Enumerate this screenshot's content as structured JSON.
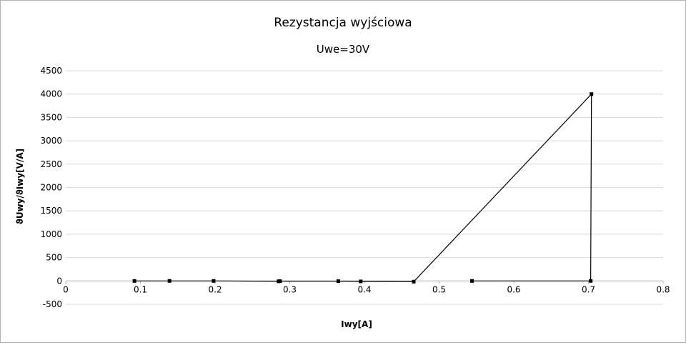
{
  "chart_data": {
    "type": "scatter",
    "title": "Rezystancja wyjściowa",
    "subtitle": "Uwe=30V",
    "xlabel": "Iwy[A]",
    "ylabel": "ϑUwy/ϑIwy[V/A]",
    "xlim": [
      0,
      0.8
    ],
    "ylim": [
      -500,
      4500
    ],
    "x_ticks": [
      "0",
      "0.1",
      "0.2",
      "0.3",
      "0.4",
      "0.5",
      "0.6",
      "0.7",
      "0.8"
    ],
    "y_ticks": [
      "-500",
      "0",
      "500",
      "1000",
      "1500",
      "2000",
      "2500",
      "3000",
      "3500",
      "4000",
      "4500"
    ],
    "grid": "horizontal",
    "legend": "none",
    "line_color": "#000000",
    "grid_color": "#d9d9d9",
    "series": [
      {
        "points": [
          {
            "x": 0.092,
            "y": 0
          },
          {
            "x": 0.139,
            "y": 0
          },
          {
            "x": 0.198,
            "y": 0
          },
          {
            "x": 0.285,
            "y": -8
          },
          {
            "x": 0.287,
            "y": -5
          },
          {
            "x": 0.365,
            "y": -5
          },
          {
            "x": 0.395,
            "y": -10
          },
          {
            "x": 0.466,
            "y": -15
          },
          {
            "x": 0.704,
            "y": 4000
          },
          {
            "x": 0.703,
            "y": 0
          },
          {
            "x": 0.544,
            "y": 0
          }
        ]
      }
    ]
  }
}
